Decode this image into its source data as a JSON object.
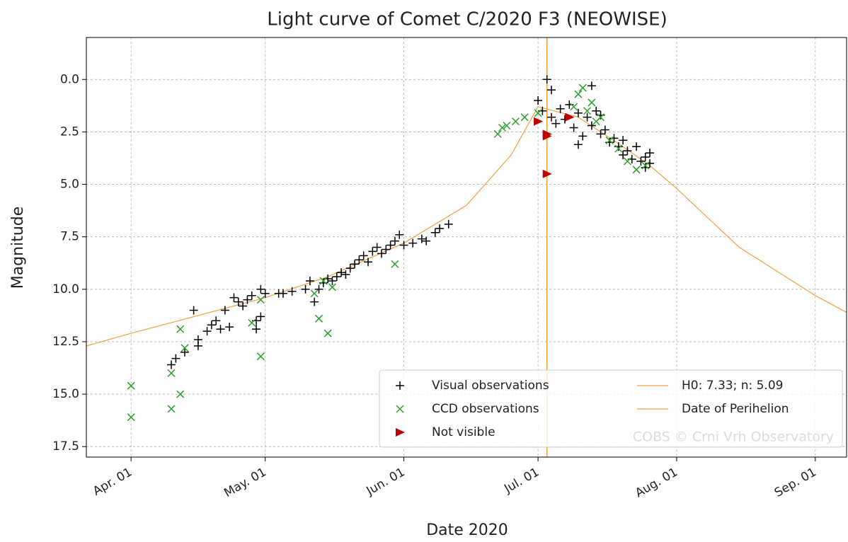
{
  "chart_data": {
    "type": "scatter",
    "title": "Light curve of Comet C/2020 F3 (NEOWISE)",
    "xlabel": "Date 2020",
    "ylabel": "Magnitude",
    "watermark": "COBS © Crni Vrh Observatory",
    "xlim": [
      "2020-03-22",
      "2020-09-08"
    ],
    "xticks": [
      {
        "value": "2020-04-01",
        "label": "Apr. 01"
      },
      {
        "value": "2020-05-01",
        "label": "May. 01"
      },
      {
        "value": "2020-06-01",
        "label": "Jun. 01"
      },
      {
        "value": "2020-07-01",
        "label": "Jul. 01"
      },
      {
        "value": "2020-08-01",
        "label": "Aug. 01"
      },
      {
        "value": "2020-09-01",
        "label": "Sep. 01"
      }
    ],
    "ylim": [
      -2,
      18
    ],
    "invert_y": true,
    "yticks": [
      {
        "value": 0,
        "label": "0.0"
      },
      2.5,
      {
        "value": 5,
        "label": "5.0"
      },
      7.5,
      {
        "value": 10,
        "label": "10.0"
      },
      12.5,
      {
        "value": 15,
        "label": "15.0"
      },
      17.5
    ],
    "grid": true,
    "legend": "lower right",
    "series": [
      {
        "name": "Visual observations",
        "marker": "plus",
        "color": "#000000",
        "x": [
          "2020-04-10",
          "2020-04-11",
          "2020-04-13",
          "2020-04-15",
          "2020-04-16",
          "2020-04-16",
          "2020-04-18",
          "2020-04-19",
          "2020-04-20",
          "2020-04-21",
          "2020-04-22",
          "2020-04-23",
          "2020-04-24",
          "2020-04-25",
          "2020-04-26",
          "2020-04-27",
          "2020-04-28",
          "2020-04-29",
          "2020-04-29",
          "2020-04-30",
          "2020-04-30",
          "2020-05-01",
          "2020-05-04",
          "2020-05-05",
          "2020-05-07",
          "2020-05-10",
          "2020-05-11",
          "2020-05-12",
          "2020-05-13",
          "2020-05-14",
          "2020-05-15",
          "2020-05-16",
          "2020-05-17",
          "2020-05-18",
          "2020-05-19",
          "2020-05-20",
          "2020-05-21",
          "2020-05-22",
          "2020-05-23",
          "2020-05-24",
          "2020-05-25",
          "2020-05-26",
          "2020-05-27",
          "2020-05-28",
          "2020-05-29",
          "2020-05-30",
          "2020-05-31",
          "2020-06-01",
          "2020-06-03",
          "2020-06-05",
          "2020-06-06",
          "2020-06-08",
          "2020-06-09",
          "2020-06-11",
          "2020-07-01",
          "2020-07-02",
          "2020-07-03",
          "2020-07-04",
          "2020-07-04",
          "2020-07-05",
          "2020-07-06",
          "2020-07-07",
          "2020-07-08",
          "2020-07-09",
          "2020-07-10",
          "2020-07-10",
          "2020-07-11",
          "2020-07-12",
          "2020-07-13",
          "2020-07-13",
          "2020-07-14",
          "2020-07-15",
          "2020-07-15",
          "2020-07-16",
          "2020-07-17",
          "2020-07-18",
          "2020-07-19",
          "2020-07-20",
          "2020-07-20",
          "2020-07-21",
          "2020-07-22",
          "2020-07-23",
          "2020-07-24",
          "2020-07-25",
          "2020-07-25",
          "2020-07-26",
          "2020-07-26"
        ],
        "values": [
          13.6,
          13.3,
          13.0,
          11.0,
          12.7,
          12.4,
          12.0,
          11.7,
          11.5,
          11.9,
          11.0,
          11.8,
          10.4,
          10.6,
          10.8,
          10.5,
          10.3,
          11.5,
          11.9,
          11.3,
          10.0,
          10.2,
          10.2,
          10.2,
          10.1,
          10.0,
          9.6,
          10.6,
          10.0,
          9.7,
          9.5,
          9.6,
          9.4,
          9.2,
          9.3,
          9.0,
          8.8,
          8.6,
          8.4,
          8.7,
          8.2,
          8.0,
          8.3,
          8.1,
          7.9,
          7.7,
          7.4,
          7.9,
          7.8,
          7.6,
          7.7,
          7.3,
          7.1,
          6.9,
          1.0,
          1.5,
          0.0,
          0.5,
          1.8,
          2.1,
          1.4,
          1.9,
          1.2,
          2.3,
          1.6,
          3.1,
          2.7,
          1.8,
          0.3,
          2.2,
          1.5,
          2.6,
          1.7,
          2.4,
          3.0,
          2.8,
          3.2,
          3.6,
          2.9,
          3.4,
          3.8,
          3.2,
          3.9,
          3.7,
          4.2,
          3.5,
          4.0
        ]
      },
      {
        "name": "CCD observations",
        "marker": "x",
        "color": "#2ca02c",
        "x": [
          "2020-04-01",
          "2020-04-01",
          "2020-04-10",
          "2020-04-10",
          "2020-04-12",
          "2020-04-12",
          "2020-04-13",
          "2020-04-28",
          "2020-04-30",
          "2020-04-30",
          "2020-05-12",
          "2020-05-13",
          "2020-05-14",
          "2020-05-15",
          "2020-05-16",
          "2020-05-30",
          "2020-06-22",
          "2020-06-23",
          "2020-06-24",
          "2020-06-26",
          "2020-06-28",
          "2020-07-01",
          "2020-07-09",
          "2020-07-10",
          "2020-07-11",
          "2020-07-12",
          "2020-07-13",
          "2020-07-14",
          "2020-07-15",
          "2020-07-17",
          "2020-07-19",
          "2020-07-21",
          "2020-07-23",
          "2020-07-25"
        ],
        "values": [
          14.6,
          16.1,
          14.0,
          15.7,
          11.9,
          15.0,
          12.8,
          11.6,
          13.2,
          10.5,
          10.2,
          11.4,
          9.6,
          12.1,
          9.9,
          8.8,
          2.6,
          2.3,
          2.2,
          2.0,
          1.8,
          1.6,
          1.3,
          0.7,
          0.4,
          1.5,
          1.1,
          2.0,
          1.8,
          2.9,
          3.3,
          3.9,
          4.3,
          4.1
        ]
      },
      {
        "name": "Not visible",
        "marker": "triangle-right",
        "color": "#c00000",
        "x": [
          "2020-07-01",
          "2020-07-03",
          "2020-07-03",
          "2020-07-03",
          "2020-07-08"
        ],
        "values": [
          2.0,
          2.6,
          2.7,
          4.5,
          1.8
        ]
      },
      {
        "name": "H0: 7.33; n: 5.09",
        "marker": "line",
        "color": "#f0a040",
        "x": [
          "2020-03-22",
          "2020-04-01",
          "2020-05-01",
          "2020-05-15",
          "2020-06-01",
          "2020-06-15",
          "2020-06-25",
          "2020-07-01",
          "2020-07-10",
          "2020-07-20",
          "2020-07-26",
          "2020-08-01",
          "2020-08-15",
          "2020-09-01",
          "2020-09-08"
        ],
        "values": [
          12.7,
          12.1,
          10.4,
          9.4,
          7.8,
          6.0,
          3.6,
          1.3,
          1.8,
          3.2,
          4.1,
          5.2,
          8.0,
          10.3,
          11.1
        ]
      },
      {
        "name": "Date of Perihelion",
        "marker": "vline",
        "color": "#f0a040",
        "x": [
          "2020-07-03"
        ]
      }
    ]
  }
}
